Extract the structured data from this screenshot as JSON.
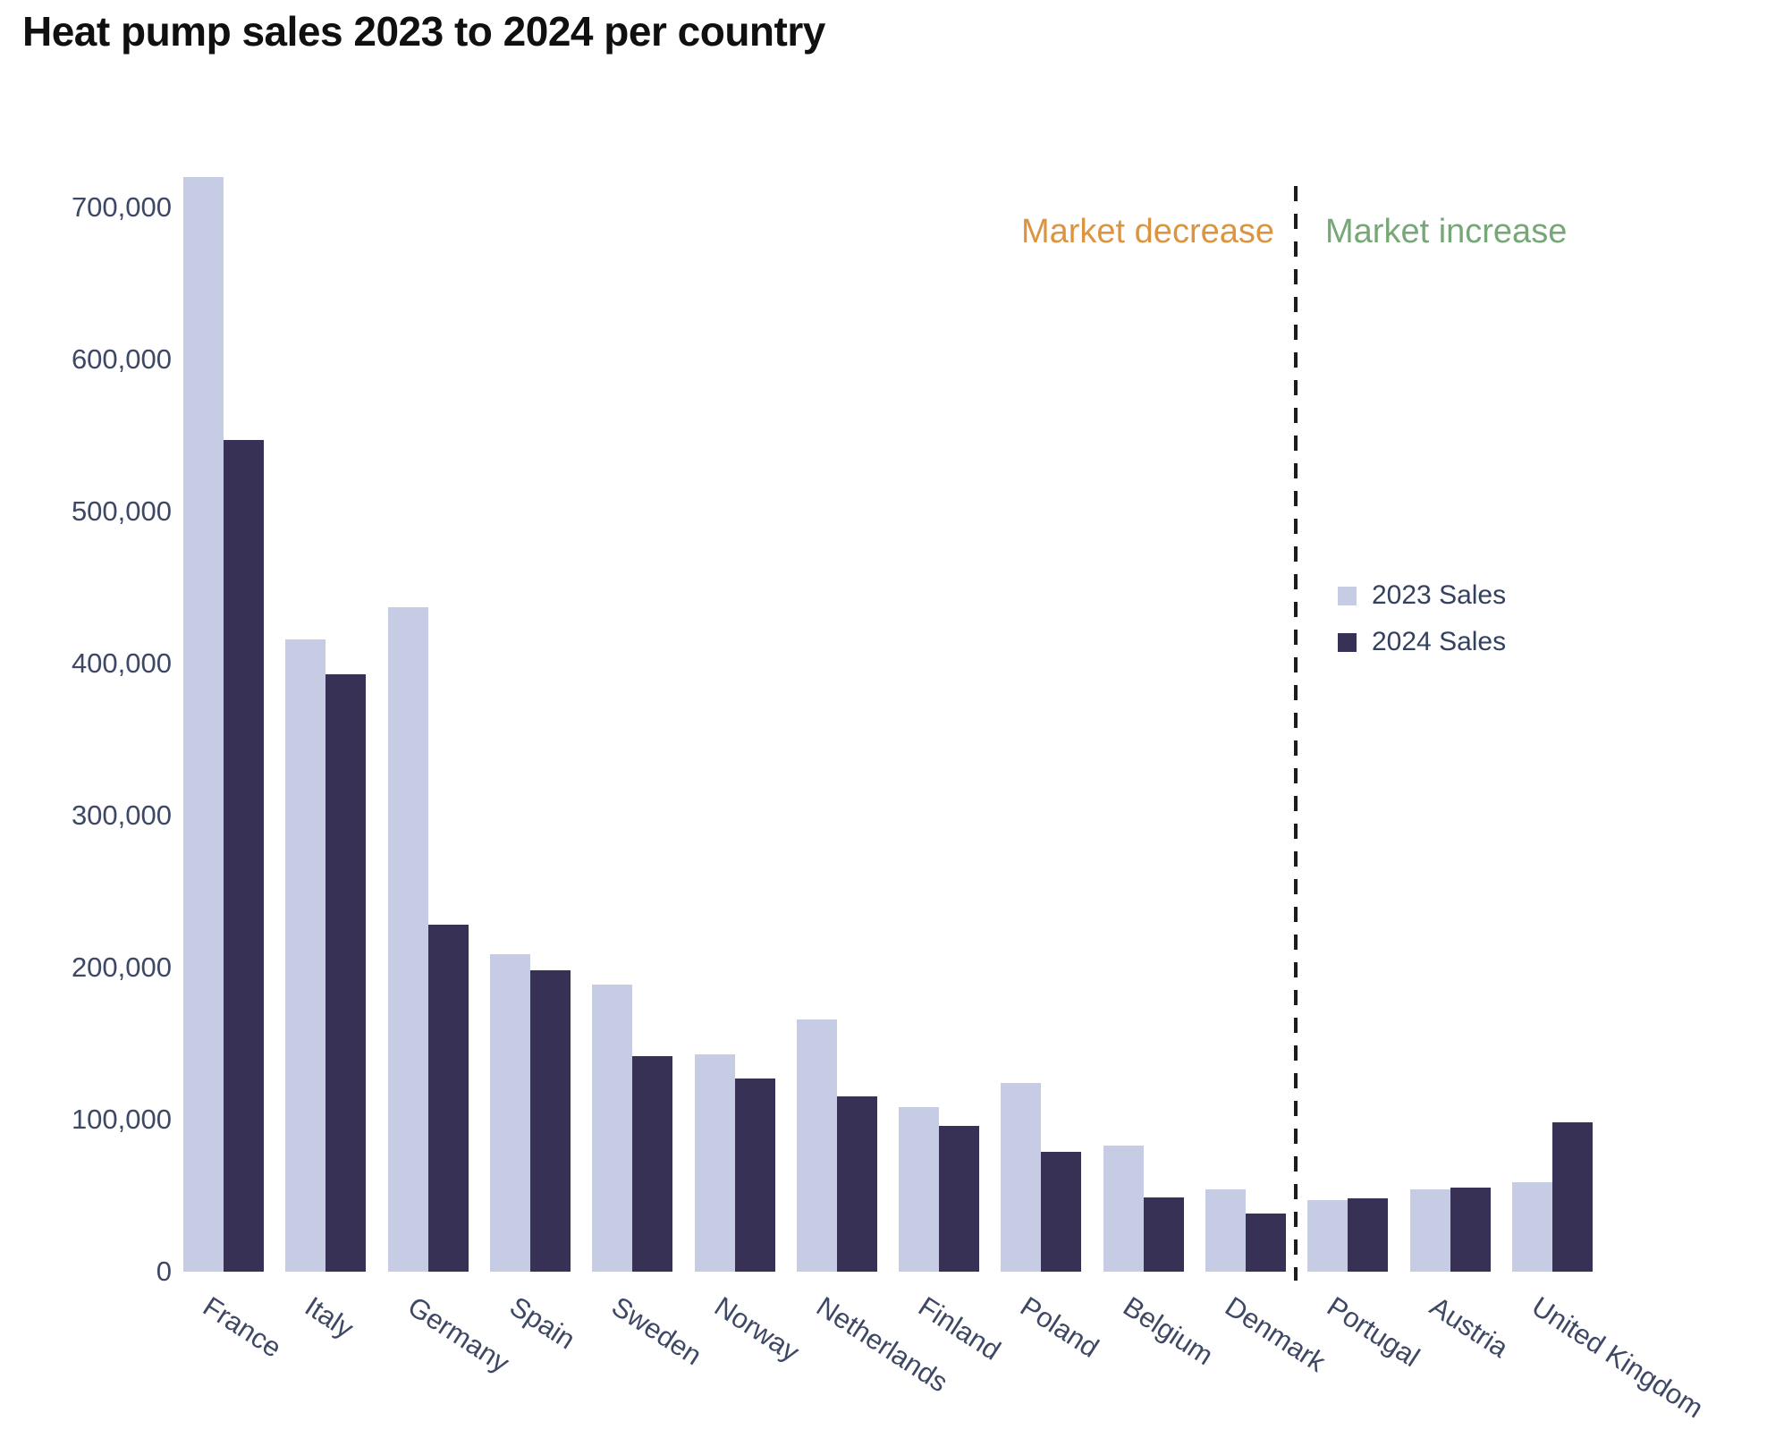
{
  "chart_data": {
    "type": "bar",
    "title": "Heat pump sales 2023 to 2024 per country",
    "categories": [
      "France",
      "Italy",
      "Germany",
      "Spain",
      "Sweden",
      "Norway",
      "Netherlands",
      "Finland",
      "Poland",
      "Belgium",
      "Denmark",
      "Portugal",
      "Austria",
      "United Kingdom"
    ],
    "series": [
      {
        "name": "2023 Sales",
        "color": "#C6CCE4",
        "values": [
          720000,
          416000,
          437000,
          209000,
          189000,
          143000,
          166000,
          108000,
          124000,
          83000,
          54000,
          47000,
          54000,
          59000
        ]
      },
      {
        "name": "2024 Sales",
        "color": "#363155",
        "values": [
          547000,
          393000,
          228000,
          198000,
          142000,
          127000,
          115000,
          96000,
          79000,
          49000,
          38000,
          48000,
          55000,
          98000
        ]
      }
    ],
    "ylim": [
      0,
      735000
    ],
    "yticks": [
      {
        "value": 0,
        "label": "0"
      },
      {
        "value": 100000,
        "label": "100,000"
      },
      {
        "value": 200000,
        "label": "200,000"
      },
      {
        "value": 300000,
        "label": "300,000"
      },
      {
        "value": 400000,
        "label": "400,000"
      },
      {
        "value": 500000,
        "label": "500,000"
      },
      {
        "value": 600000,
        "label": "600,000"
      },
      {
        "value": 700000,
        "label": "700,000"
      }
    ],
    "grid": false,
    "legend_position": "center-right",
    "annotations": [
      {
        "text": "Market decrease",
        "color": "#DD943E",
        "side": "left-of-divider"
      },
      {
        "text": "Market increase",
        "color": "#76A877",
        "side": "right-of-divider"
      }
    ],
    "divider": {
      "after_category": "Denmark",
      "style": "dashed",
      "color": "#1C1C1C"
    },
    "text_colors": {
      "title": "#101010",
      "axis": "#3E4864",
      "legend": "#33405E"
    }
  }
}
